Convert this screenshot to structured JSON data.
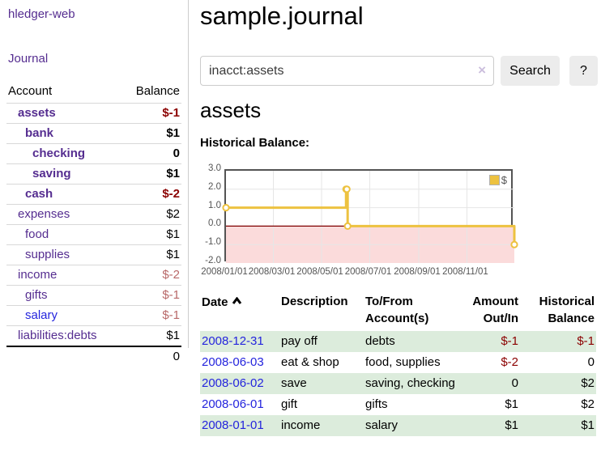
{
  "colors": {
    "link_purple": "#552d90",
    "link_blue": "#2424dd",
    "negative_strong": "#8b0000",
    "negative_soft": "#b86868",
    "row_stripe_green": "#dcecdc",
    "chart_negative_fill": "#fbdbdb",
    "chart_zero_line": "#800000",
    "chart_grid": "#e6e6e6"
  },
  "brand": {
    "title": "hledger-web"
  },
  "nav": {
    "journal": "Journal"
  },
  "sidebar": {
    "header": {
      "account": "Account",
      "balance": "Balance"
    },
    "rows": [
      {
        "label": "assets",
        "balance": "$-1",
        "depth": 1,
        "bold": true,
        "negative": "strong"
      },
      {
        "label": "bank",
        "balance": "$1",
        "depth": 2,
        "bold": true,
        "negative": ""
      },
      {
        "label": "checking",
        "balance": "0",
        "depth": 3,
        "bold": true,
        "negative": ""
      },
      {
        "label": "saving",
        "balance": "$1",
        "depth": 3,
        "bold": true,
        "negative": ""
      },
      {
        "label": "cash",
        "balance": "$-2",
        "depth": 2,
        "bold": true,
        "negative": "strong"
      },
      {
        "label": "expenses",
        "balance": "$2",
        "depth": 1,
        "bold": false,
        "negative": ""
      },
      {
        "label": "food",
        "balance": "$1",
        "depth": 2,
        "bold": false,
        "negative": ""
      },
      {
        "label": "supplies",
        "balance": "$1",
        "depth": 2,
        "bold": false,
        "negative": ""
      },
      {
        "label": "income",
        "balance": "$-2",
        "depth": 1,
        "bold": false,
        "negative": "soft"
      },
      {
        "label": "gifts",
        "balance": "$-1",
        "depth": 2,
        "bold": false,
        "negative": "soft"
      },
      {
        "label": "salary",
        "balance": "$-1",
        "depth": 2,
        "bold": false,
        "negative": "soft",
        "link_color": "blue"
      },
      {
        "label": "liabilities:debts",
        "balance": "$1",
        "depth": 1,
        "bold": false,
        "negative": ""
      }
    ],
    "total": "0"
  },
  "main": {
    "title": "sample.journal",
    "search": {
      "value": "inacct:assets",
      "clear_icon": "×",
      "search_button": "Search",
      "help_button": "?"
    },
    "account_heading": "assets",
    "section_label": "Historical Balance:"
  },
  "register": {
    "headers": {
      "date": "Date",
      "description": "Description",
      "tofrom_line1": "To/From",
      "tofrom_line2": "Account(s)",
      "amount_line1": "Amount",
      "amount_line2": "Out/In",
      "balance_line1": "Historical",
      "balance_line2": "Balance"
    },
    "rows": [
      {
        "date": "2008-12-31",
        "description": "pay off",
        "accounts": "debts",
        "amount": "$-1",
        "balance": "$-1",
        "amount_negative": true,
        "balance_negative": true,
        "stripe": true
      },
      {
        "date": "2008-06-03",
        "description": "eat & shop",
        "accounts": "food, supplies",
        "amount": "$-2",
        "balance": "0",
        "amount_negative": true,
        "balance_negative": false,
        "stripe": false
      },
      {
        "date": "2008-06-02",
        "description": "save",
        "accounts": "saving, checking",
        "amount": "0",
        "balance": "$2",
        "amount_negative": false,
        "balance_negative": false,
        "stripe": true
      },
      {
        "date": "2008-06-01",
        "description": "gift",
        "accounts": "gifts",
        "amount": "$1",
        "balance": "$2",
        "amount_negative": false,
        "balance_negative": false,
        "stripe": false
      },
      {
        "date": "2008-01-01",
        "description": "income",
        "accounts": "salary",
        "amount": "$1",
        "balance": "$1",
        "amount_negative": false,
        "balance_negative": false,
        "stripe": true
      }
    ]
  },
  "chart_data": {
    "type": "line",
    "title": "Historical Balance:",
    "step": true,
    "grid": true,
    "series": [
      {
        "name": "$",
        "color": "#edc240",
        "points": [
          [
            "2008-01-01",
            1
          ],
          [
            "2008-06-01",
            2
          ],
          [
            "2008-06-02",
            2
          ],
          [
            "2008-06-03",
            0
          ],
          [
            "2008-12-31",
            -1
          ]
        ]
      }
    ],
    "x_range": [
      "2008-01-01",
      "2008-12-31"
    ],
    "ylim": [
      -2,
      3
    ],
    "y_ticks": [
      3,
      2,
      1,
      0,
      -1,
      -2
    ],
    "y_tick_labels": [
      "3.0",
      "2.0",
      "1.0",
      "0.0",
      "-1.0",
      "-2.0"
    ],
    "x_tick_dates": [
      "2008-01-01",
      "2008-03-01",
      "2008-05-01",
      "2008-07-01",
      "2008-09-01",
      "2008-11-01"
    ],
    "x_tick_labels": [
      "2008/01/01",
      "2008/03/01",
      "2008/05/01",
      "2008/07/01",
      "2008/09/01",
      "2008/11/01"
    ],
    "legend": {
      "label": "$",
      "position": "top-right"
    }
  }
}
